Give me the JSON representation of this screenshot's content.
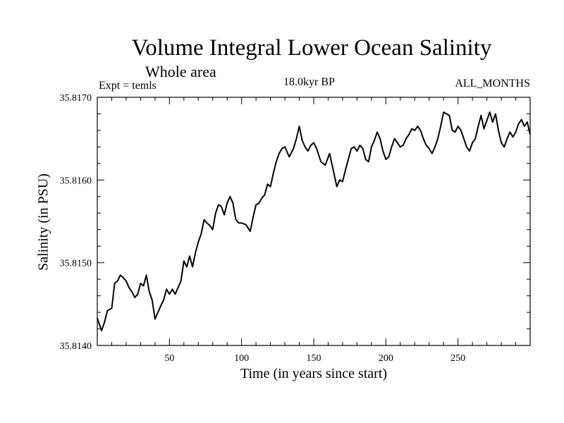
{
  "chart_data": {
    "type": "line",
    "title": "Volume Integral Lower Ocean Salinity",
    "subtitle": "Whole area",
    "experiment": "Expt = temls",
    "period": "18.0kyr BP",
    "months": "ALL_MONTHS",
    "xlabel": "Time (in years since start)",
    "ylabel": "Salinity (in PSU)",
    "xlim": [
      0,
      300
    ],
    "ylim": [
      35.814,
      35.817
    ],
    "xticks": [
      50,
      100,
      150,
      200,
      250
    ],
    "xtick_labels": [
      "50",
      "100",
      "150",
      "200",
      "250"
    ],
    "yticks": [
      35.814,
      35.815,
      35.816,
      35.817
    ],
    "ytick_labels": [
      "35.8140",
      "35.8150",
      "35.8160",
      "35.8170"
    ],
    "grid": false,
    "series": [
      {
        "name": "salinity",
        "x": [
          0,
          3,
          5,
          7,
          10,
          12,
          14,
          16,
          18,
          20,
          22,
          24,
          26,
          28,
          30,
          32,
          34,
          36,
          38,
          40,
          42,
          44,
          46,
          48,
          50,
          52,
          54,
          56,
          58,
          60,
          62,
          64,
          66,
          68,
          70,
          72,
          74,
          76,
          78,
          80,
          82,
          84,
          86,
          88,
          90,
          92,
          94,
          96,
          98,
          100,
          103,
          106,
          108,
          110,
          112,
          114,
          116,
          118,
          120,
          122,
          124,
          126,
          128,
          130,
          133,
          136,
          138,
          140,
          142,
          144,
          146,
          148,
          150,
          152,
          155,
          158,
          161,
          164,
          166,
          168,
          170,
          172,
          174,
          176,
          178,
          180,
          182,
          184,
          186,
          188,
          190,
          192,
          194,
          196,
          198,
          200,
          202,
          204,
          206,
          208,
          210,
          212,
          214,
          216,
          218,
          220,
          222,
          224,
          226,
          228,
          230,
          232,
          234,
          236,
          238,
          240,
          242,
          244,
          246,
          248,
          250,
          252,
          254,
          256,
          258,
          260,
          262,
          264,
          266,
          268,
          270,
          272,
          274,
          276,
          278,
          280,
          282,
          284,
          286,
          288,
          290,
          292,
          294,
          296,
          298,
          300
        ],
        "values": [
          35.81433,
          35.81418,
          35.81428,
          35.81442,
          35.81445,
          35.81475,
          35.81478,
          35.81485,
          35.81482,
          35.81478,
          35.8147,
          35.81465,
          35.81458,
          35.81462,
          35.81475,
          35.81472,
          35.81485,
          35.81465,
          35.81455,
          35.81432,
          35.8144,
          35.81448,
          35.81455,
          35.81468,
          35.81462,
          35.81468,
          35.81462,
          35.8147,
          35.81478,
          35.81502,
          35.81495,
          35.81508,
          35.81495,
          35.81512,
          35.81525,
          35.81535,
          35.81552,
          35.81548,
          35.81545,
          35.8154,
          35.8156,
          35.8157,
          35.81568,
          35.81558,
          35.81572,
          35.8158,
          35.81572,
          35.81552,
          35.81548,
          35.81548,
          35.81546,
          35.81538,
          35.81555,
          35.8157,
          35.81572,
          35.81578,
          35.81582,
          35.81595,
          35.81592,
          35.81608,
          35.81622,
          35.81632,
          35.81638,
          35.8164,
          35.81628,
          35.81638,
          35.8165,
          35.81665,
          35.81648,
          35.8164,
          35.81635,
          35.81642,
          35.81645,
          35.81638,
          35.81622,
          35.81618,
          35.81632,
          35.81608,
          35.81592,
          35.816,
          35.81598,
          35.81612,
          35.81625,
          35.81638,
          35.8164,
          35.81635,
          35.81642,
          35.81638,
          35.81625,
          35.81622,
          35.8164,
          35.81648,
          35.81658,
          35.8165,
          35.81635,
          35.81625,
          35.81628,
          35.8164,
          35.8165,
          35.81645,
          35.8164,
          35.81642,
          35.8165,
          35.81655,
          35.81662,
          35.8166,
          35.81665,
          35.8166,
          35.8165,
          35.81642,
          35.81638,
          35.81632,
          35.8164,
          35.8165,
          35.81665,
          35.81682,
          35.8168,
          35.81678,
          35.8166,
          35.81658,
          35.81665,
          35.8166,
          35.8165,
          35.8164,
          35.81635,
          35.81645,
          35.8165,
          35.81665,
          35.81678,
          35.81662,
          35.81672,
          35.81682,
          35.8167,
          35.8168,
          35.8166,
          35.81645,
          35.8164,
          35.8165,
          35.81658,
          35.81652,
          35.81658,
          35.81668,
          35.81673,
          35.81665,
          35.8167,
          35.81655
        ]
      }
    ]
  }
}
